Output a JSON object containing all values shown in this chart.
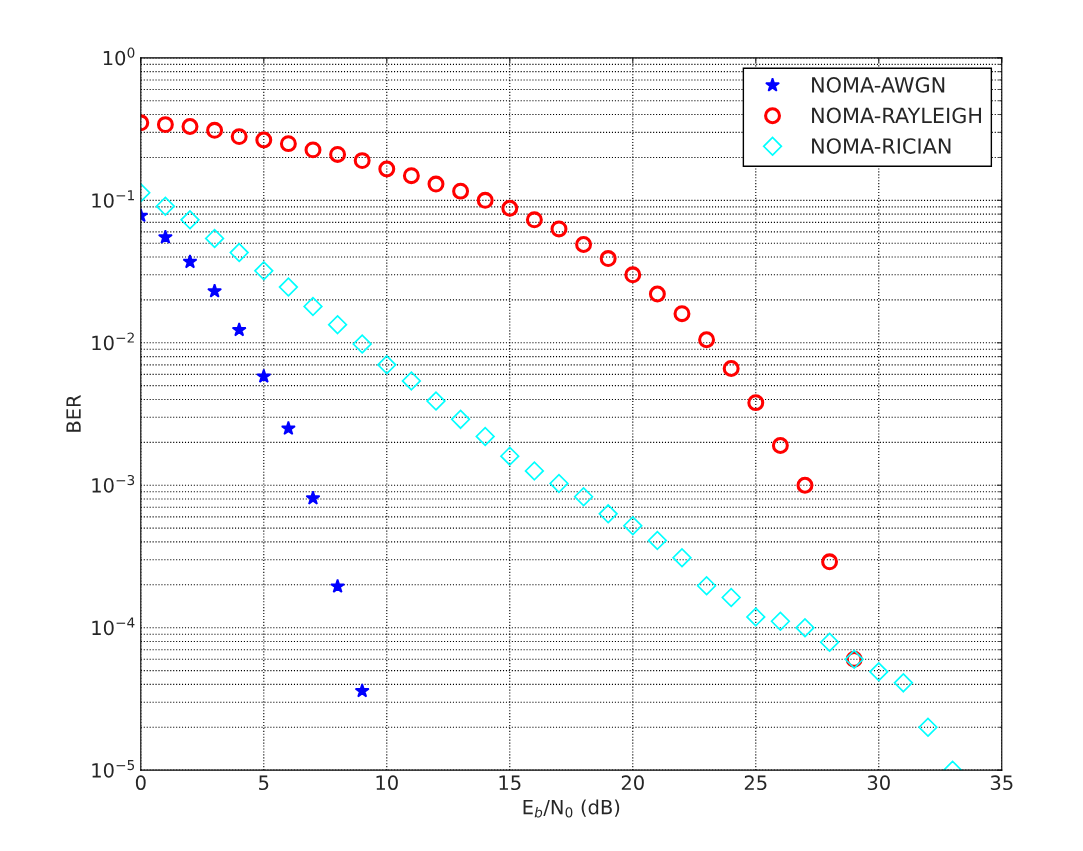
{
  "chart_data": {
    "type": "scatter",
    "xlabel": "E$_{b}$/N$_{0}$ (dB)",
    "ylabel": "BER",
    "log": "y",
    "grid": true,
    "legend": "top right",
    "xlim": [
      0,
      35
    ],
    "xticks": [
      0,
      5,
      10,
      15,
      20,
      25,
      30,
      35
    ],
    "ylim": [
      1e-05,
      1
    ],
    "yticks": [
      {
        "value": 1e-05,
        "label": "10$^{−5}$"
      },
      {
        "value": 0.0001,
        "label": "10$^{−4}$"
      },
      {
        "value": 0.001,
        "label": "10$^{−3}$"
      },
      {
        "value": 0.01,
        "label": "10$^{−2}$"
      },
      {
        "value": 0.1,
        "label": "10$^{−1}$"
      },
      {
        "value": 1,
        "label": "10$^{0}$"
      }
    ],
    "series": [
      {
        "name": "NOMA-AWGN",
        "color": "#0000ff",
        "marker": "star",
        "x": [
          0,
          1,
          2,
          3,
          4,
          5,
          6,
          7,
          8,
          9
        ],
        "values": [
          0.078,
          0.055,
          0.037,
          0.023,
          0.0123,
          0.0058,
          0.0025,
          0.00081,
          0.000195,
          3.6e-05
        ]
      },
      {
        "name": "NOMA-RAYLEIGH",
        "color": "#ff0000",
        "marker": "circle",
        "x": [
          0,
          1,
          2,
          3,
          4,
          5,
          6,
          7,
          8,
          9,
          10,
          11,
          12,
          13,
          14,
          15,
          16,
          17,
          18,
          19,
          20,
          21,
          22,
          23,
          24,
          25,
          26,
          27,
          28,
          29
        ],
        "values": [
          0.35,
          0.34,
          0.33,
          0.31,
          0.28,
          0.265,
          0.25,
          0.226,
          0.21,
          0.19,
          0.166,
          0.149,
          0.13,
          0.116,
          0.1,
          0.088,
          0.073,
          0.063,
          0.049,
          0.039,
          0.03,
          0.022,
          0.016,
          0.0105,
          0.0066,
          0.0038,
          0.0019,
          0.001,
          0.00029,
          6e-05
        ]
      },
      {
        "name": "NOMA-RICIAN",
        "color": "#00ffff",
        "marker": "diamond",
        "x": [
          0,
          1,
          2,
          3,
          4,
          5,
          6,
          7,
          8,
          9,
          10,
          11,
          12,
          13,
          14,
          15,
          16,
          17,
          18,
          19,
          20,
          21,
          22,
          23,
          24,
          25,
          26,
          27,
          28,
          29,
          30,
          31,
          32,
          33
        ],
        "values": [
          0.113,
          0.091,
          0.073,
          0.054,
          0.043,
          0.032,
          0.0246,
          0.018,
          0.0134,
          0.0098,
          0.007,
          0.0054,
          0.0039,
          0.0029,
          0.0022,
          0.0016,
          0.00126,
          0.00103,
          0.00083,
          0.00063,
          0.00052,
          0.00041,
          0.00031,
          0.000197,
          0.000163,
          0.000119,
          0.000111,
          0.0001,
          7.9e-05,
          6e-05,
          4.9e-05,
          4.1e-05,
          2e-05,
          1e-05
        ]
      }
    ]
  }
}
